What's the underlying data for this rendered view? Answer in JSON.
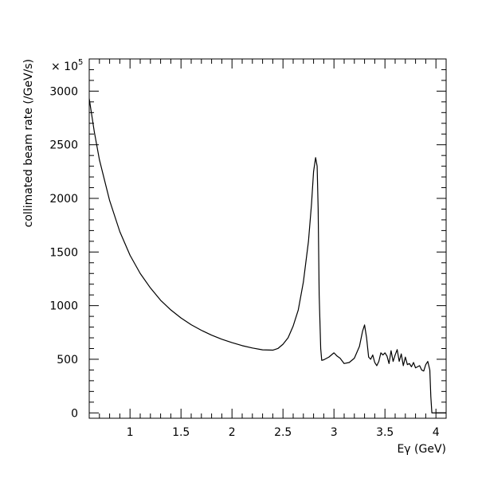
{
  "chart_data": {
    "type": "line",
    "xlabel": "Eγ (GeV)",
    "ylabel": "collimated beam rate (/GeV/s)",
    "multiplier_label": "× 10",
    "multiplier_exponent": "5",
    "xlim": [
      0.6,
      4.1
    ],
    "ylim": [
      -50,
      3300
    ],
    "x_ticks": [
      1,
      1.5,
      2,
      2.5,
      3,
      3.5,
      4
    ],
    "x_tick_labels": [
      "1",
      "1.5",
      "2",
      "2.5",
      "3",
      "3.5",
      "4"
    ],
    "y_ticks": [
      0,
      500,
      1000,
      1500,
      2000,
      2500,
      3000
    ],
    "y_tick_labels": [
      "0",
      "500",
      "1000",
      "1500",
      "2000",
      "2500",
      "3000"
    ],
    "grid": false,
    "series": [
      {
        "x": [
          0.6,
          0.65,
          0.7,
          0.8,
          0.9,
          1.0,
          1.1,
          1.2,
          1.3,
          1.4,
          1.5,
          1.6,
          1.7,
          1.8,
          1.9,
          2.0,
          2.1,
          2.2,
          2.3,
          2.4,
          2.45,
          2.5,
          2.55,
          2.6,
          2.65,
          2.7,
          2.75,
          2.78,
          2.8,
          2.82,
          2.835,
          2.845,
          2.855,
          2.87,
          2.88,
          2.9,
          2.95,
          3.0,
          3.03,
          3.06,
          3.1,
          3.15,
          3.2,
          3.25,
          3.28,
          3.3,
          3.32,
          3.34,
          3.36,
          3.38,
          3.4,
          3.42,
          3.44,
          3.46,
          3.48,
          3.5,
          3.52,
          3.54,
          3.56,
          3.58,
          3.6,
          3.62,
          3.64,
          3.66,
          3.68,
          3.7,
          3.72,
          3.74,
          3.76,
          3.78,
          3.8,
          3.82,
          3.84,
          3.86,
          3.88,
          3.9,
          3.92,
          3.94,
          3.95,
          3.96,
          4.0,
          4.1
        ],
        "y": [
          2930,
          2620,
          2360,
          1980,
          1690,
          1470,
          1300,
          1165,
          1050,
          960,
          885,
          822,
          770,
          725,
          687,
          655,
          627,
          605,
          588,
          585,
          600,
          640,
          700,
          810,
          960,
          1220,
          1600,
          1950,
          2250,
          2380,
          2300,
          1900,
          1100,
          600,
          490,
          495,
          520,
          560,
          530,
          510,
          460,
          470,
          510,
          620,
          760,
          820,
          700,
          520,
          500,
          540,
          470,
          440,
          480,
          560,
          540,
          560,
          530,
          460,
          580,
          480,
          540,
          590,
          480,
          550,
          440,
          520,
          450,
          460,
          430,
          470,
          420,
          430,
          440,
          400,
          390,
          450,
          480,
          400,
          150,
          0,
          0,
          0
        ]
      }
    ]
  }
}
